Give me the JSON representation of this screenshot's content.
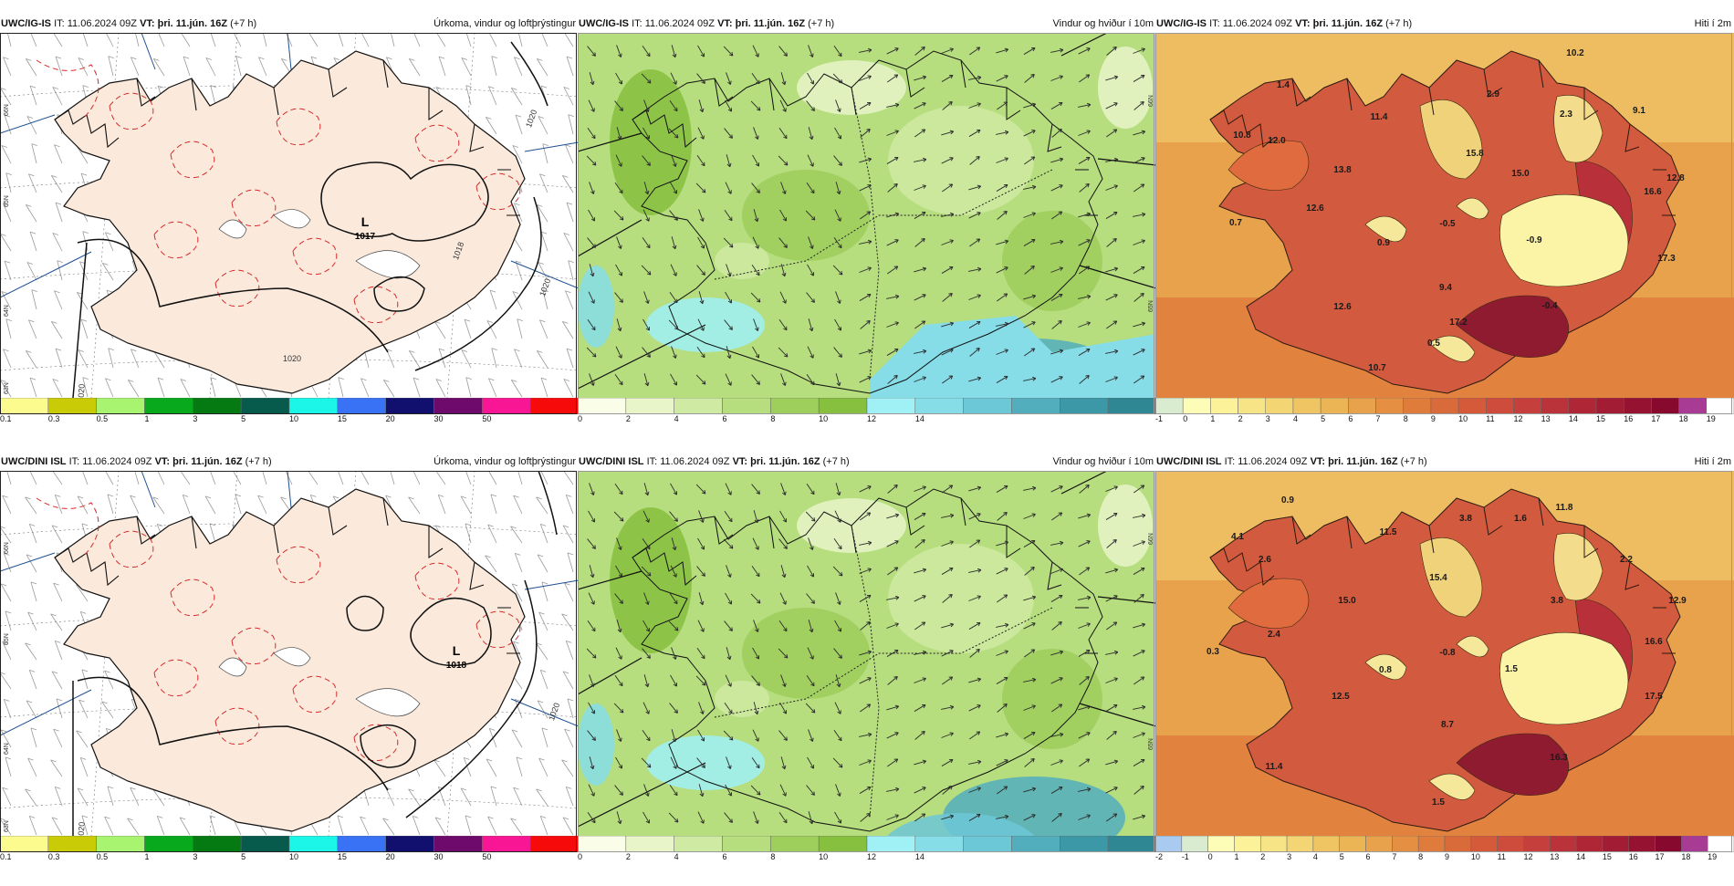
{
  "panels": [
    {
      "model": "UWC/IG-IS",
      "it_label": "IT:",
      "it_value": "11.06.2024 09Z",
      "vt_label": "VT:",
      "vt_value": "þri. 11.jún. 16Z",
      "lead": "(+7 h)",
      "field": "Úrkoma, vindur og loftþrýstingur",
      "type": "precip",
      "lows": [
        {
          "label": "L",
          "value": "1017"
        }
      ],
      "isobars": [
        "1018",
        "1020",
        "1020",
        "1020",
        "1020"
      ]
    },
    {
      "model": "UWC/IG-IS",
      "it_label": "IT:",
      "it_value": "11.06.2024 09Z",
      "vt_label": "VT:",
      "vt_value": "þri. 11.jún. 16Z",
      "lead": "(+7 h)",
      "field": "Vindur og hviður í 10m",
      "type": "wind"
    },
    {
      "model": "UWC/IG-IS",
      "it_label": "IT:",
      "it_value": "11.06.2024 09Z",
      "vt_label": "VT:",
      "vt_value": "þri. 11.jún. 16Z",
      "lead": "(+7 h)",
      "field": "Hiti í 2m",
      "type": "temp",
      "values": [
        "10.2",
        "1.4",
        "2.9",
        "11.4",
        "2.3",
        "9.1",
        "10.8",
        "12.0",
        "15.8",
        "13.8",
        "15.0",
        "12.8",
        "16.6",
        "12.6",
        "0.7",
        "0.9",
        "-0.5",
        "-0.9",
        "17.3",
        "9.4",
        "12.6",
        "-0.4",
        "17.2",
        "0.5",
        "10.7"
      ]
    },
    {
      "model": "UWC/DINI ISL",
      "it_label": "IT:",
      "it_value": "11.06.2024 09Z",
      "vt_label": "VT:",
      "vt_value": "þri. 11.jún. 16Z",
      "lead": "(+7 h)",
      "field": "Úrkoma, vindur og loftþrýstingur",
      "type": "precip",
      "lows": [
        {
          "label": "L",
          "value": "1018"
        }
      ],
      "isobars": [
        "1020",
        "1020"
      ]
    },
    {
      "model": "UWC/DINI ISL",
      "it_label": "IT:",
      "it_value": "11.06.2024 09Z",
      "vt_label": "VT:",
      "vt_value": "þri. 11.jún. 16Z",
      "lead": "(+7 h)",
      "field": "Vindur og hviður í 10m",
      "type": "wind"
    },
    {
      "model": "UWC/DINI ISL",
      "it_label": "IT:",
      "it_value": "11.06.2024 09Z",
      "vt_label": "VT:",
      "vt_value": "þri. 11.jún. 16Z",
      "lead": "(+7 h)",
      "field": "Hiti í 2m",
      "type": "temp",
      "values": [
        "0.9",
        "11.8",
        "4.1",
        "3.8",
        "1.6",
        "11.5",
        "2.6",
        "15.4",
        "2.2",
        "15.0",
        "3.8",
        "12.9",
        "2.4",
        "16.6",
        "0.3",
        "0.8",
        "-0.8",
        "1.5",
        "12.5",
        "8.7",
        "17.5",
        "11.4",
        "16.3",
        "1.5"
      ]
    }
  ],
  "lat_labels": {
    "precip": [
      "66N",
      "65N",
      "64N",
      "63N"
    ],
    "wind": [
      "66N",
      "65N"
    ]
  },
  "colorbars": {
    "precip": {
      "ticks": [
        "0.1",
        "0.3",
        "0.5",
        "1",
        "3",
        "5",
        "10",
        "15",
        "20",
        "30",
        "50"
      ],
      "colors": [
        "#fcfc8e",
        "#c8cb06",
        "#a8f470",
        "#08a91d",
        "#067a12",
        "#075b4d",
        "#1bf6e8",
        "#3a72f5",
        "#11106f",
        "#6e0a6c",
        "#f81694",
        "#f60a0a"
      ]
    },
    "wind": {
      "ticks": [
        "0",
        "2",
        "4",
        "6",
        "8",
        "10",
        "12",
        "14"
      ],
      "colors": [
        "#fafde8",
        "#e8f5c8",
        "#cfeaa2",
        "#b6dd7e",
        "#9ece5c",
        "#86c03e",
        "#a0f1f6",
        "#86dde8",
        "#6cc7d6",
        "#52aebd",
        "#3c97a6",
        "#2f8794"
      ]
    },
    "temp_top": {
      "ticks": [
        "-1",
        "0",
        "1",
        "2",
        "3",
        "4",
        "5",
        "6",
        "7",
        "8",
        "9",
        "10",
        "11",
        "12",
        "13",
        "14",
        "15",
        "16",
        "17",
        "18",
        "19"
      ],
      "colors": [
        "#d9ecd0",
        "#fdfdb8",
        "#fbf29a",
        "#f7e486",
        "#f3d574",
        "#efc564",
        "#ebb556",
        "#e8a24b",
        "#e48f42",
        "#df7c3c",
        "#d96a3a",
        "#d45a3a",
        "#ce4c3c",
        "#c53f3c",
        "#bb333a",
        "#af2737",
        "#a21d34",
        "#951330",
        "#870a2e",
        "#a83b93",
        "#ffffff"
      ]
    },
    "temp_bot": {
      "ticks": [
        "-2",
        "-1",
        "0",
        "1",
        "2",
        "3",
        "4",
        "5",
        "6",
        "7",
        "8",
        "9",
        "10",
        "11",
        "12",
        "13",
        "14",
        "15",
        "16",
        "17",
        "18",
        "19"
      ],
      "colors": [
        "#aacbf0",
        "#d9ecd0",
        "#fdfdb8",
        "#fbf29a",
        "#f7e486",
        "#f3d574",
        "#efc564",
        "#ebb556",
        "#e8a24b",
        "#e48f42",
        "#df7c3c",
        "#d96a3a",
        "#d45a3a",
        "#ce4c3c",
        "#c53f3c",
        "#bb333a",
        "#af2737",
        "#a21d34",
        "#951330",
        "#870a2e",
        "#a83b93",
        "#ffffff"
      ]
    }
  }
}
